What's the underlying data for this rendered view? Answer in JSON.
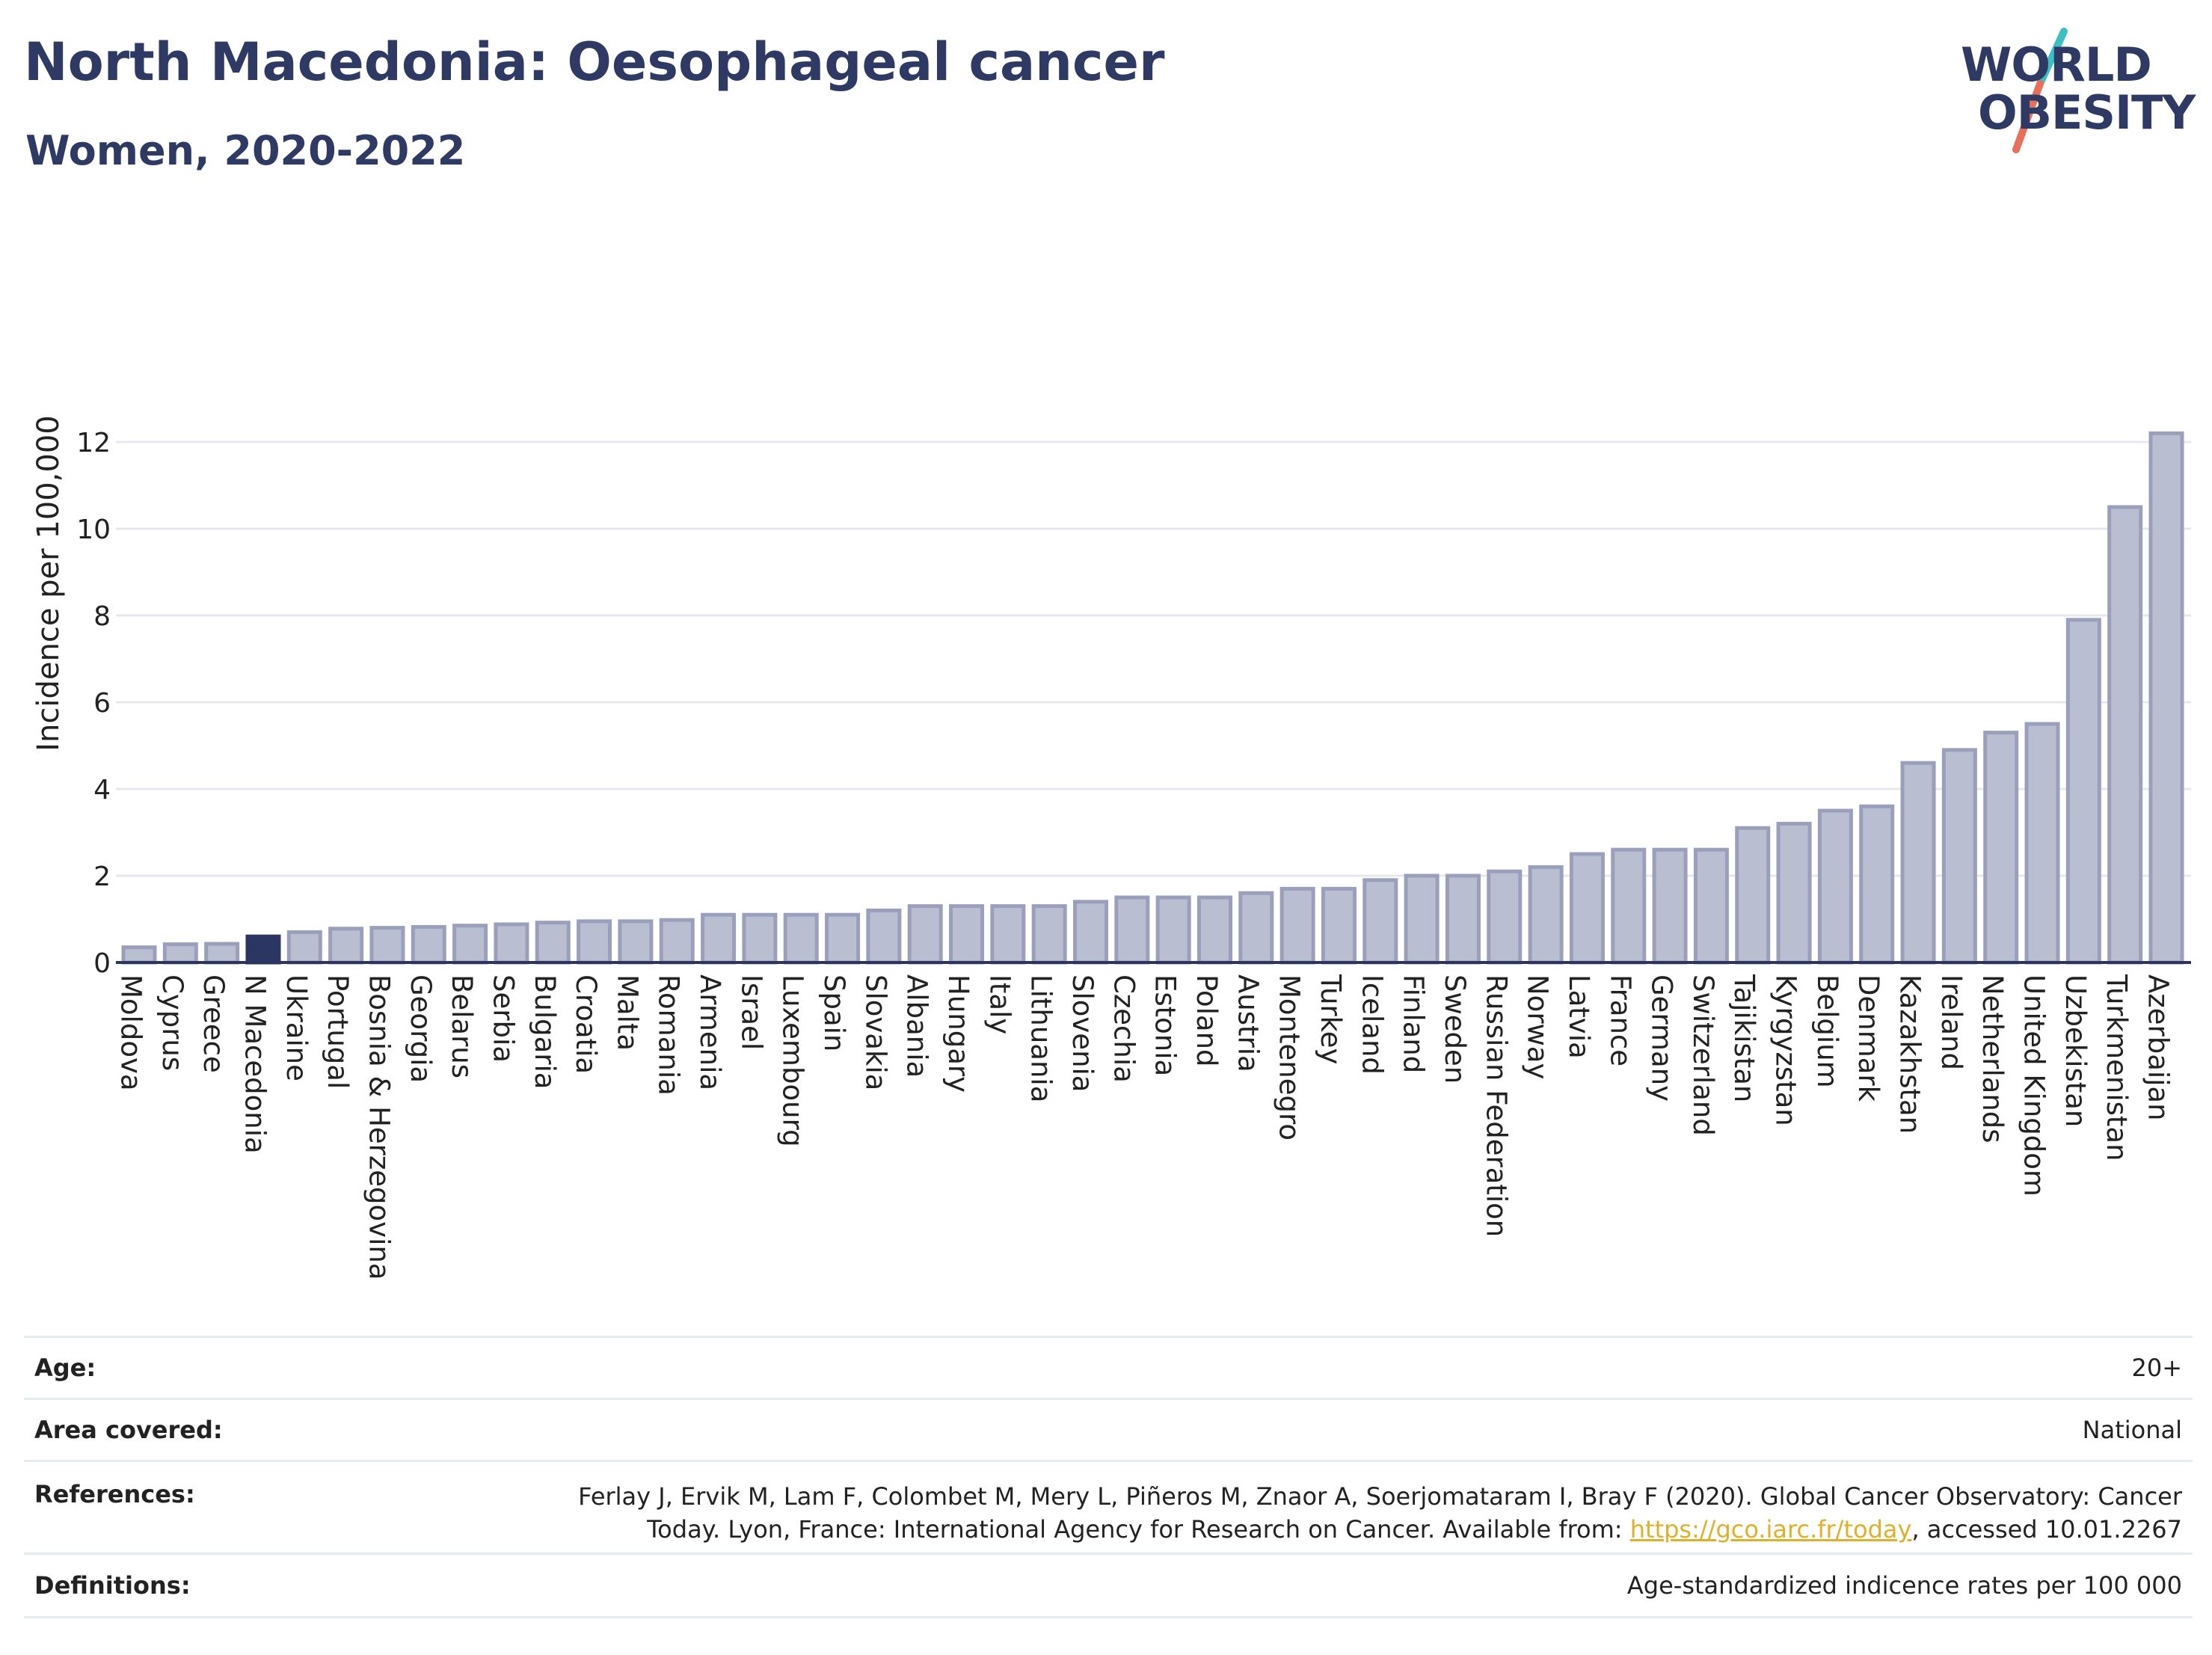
{
  "header": {
    "title": "North Macedonia: Oesophageal cancer",
    "subtitle": "Women, 2020-2022"
  },
  "logo": {
    "line1": "WORLD",
    "line2": "OBESITY",
    "colors": {
      "text": "#2e3a63",
      "slash_top": "#3bbfc1",
      "slash_bottom": "#e8705a"
    }
  },
  "colors": {
    "bar_fill": "#b9bed0",
    "bar_stroke": "#9aa0bb",
    "highlight_fill": "#2b3663",
    "grid": "#e4e8ee",
    "axis": "#2b3560"
  },
  "chart_data": {
    "type": "bar",
    "ylabel": "Incidence per 100,000",
    "xlabel": "",
    "ylim": [
      0,
      12.5
    ],
    "yticks": [
      0,
      2,
      4,
      6,
      8,
      10,
      12
    ],
    "grid": true,
    "highlight": "N Macedonia",
    "categories": [
      "Moldova",
      "Cyprus",
      "Greece",
      "N Macedonia",
      "Ukraine",
      "Portugal",
      "Bosnia & Herzegovina",
      "Georgia",
      "Belarus",
      "Serbia",
      "Bulgaria",
      "Croatia",
      "Malta",
      "Romania",
      "Armenia",
      "Israel",
      "Luxembourg",
      "Spain",
      "Slovakia",
      "Albania",
      "Hungary",
      "Italy",
      "Lithuania",
      "Slovenia",
      "Czechia",
      "Estonia",
      "Poland",
      "Austria",
      "Montenegro",
      "Turkey",
      "Iceland",
      "Finland",
      "Sweden",
      "Russian Federation",
      "Norway",
      "Latvia",
      "France",
      "Germany",
      "Switzerland",
      "Tajikistan",
      "Kyrgyzstan",
      "Belgium",
      "Denmark",
      "Kazakhstan",
      "Ireland",
      "Netherlands",
      "United Kingdom",
      "Uzbekistan",
      "Turkmenistan",
      "Azerbaijan"
    ],
    "values": [
      0.35,
      0.42,
      0.43,
      0.6,
      0.7,
      0.78,
      0.8,
      0.82,
      0.85,
      0.88,
      0.92,
      0.95,
      0.95,
      0.98,
      1.1,
      1.1,
      1.1,
      1.1,
      1.2,
      1.3,
      1.3,
      1.3,
      1.3,
      1.4,
      1.5,
      1.5,
      1.5,
      1.6,
      1.7,
      1.7,
      1.9,
      2.0,
      2.0,
      2.1,
      2.2,
      2.5,
      2.6,
      2.6,
      2.6,
      3.1,
      3.2,
      3.5,
      3.6,
      4.6,
      4.9,
      5.3,
      5.5,
      7.9,
      10.5,
      12.2
    ]
  },
  "meta": {
    "age_label": "Age:",
    "age_value": "20+",
    "area_label": "Area covered:",
    "area_value": "National",
    "references_label": "References:",
    "references_line1": "Ferlay J, Ervik M, Lam F, Colombet M, Mery L, Piñeros M, Znaor A, Soerjomataram I, Bray F (2020). Global Cancer Observatory: Cancer",
    "references_line2_pre": "Today. Lyon, France: International Agency for Research on Cancer. Available from: ",
    "references_link": "https://gco.iarc.fr/today",
    "references_line2_post": ", accessed 10.01.2267",
    "definitions_label": "Definitions:",
    "definitions_value": "Age-standardized indicence rates per 100 000"
  }
}
